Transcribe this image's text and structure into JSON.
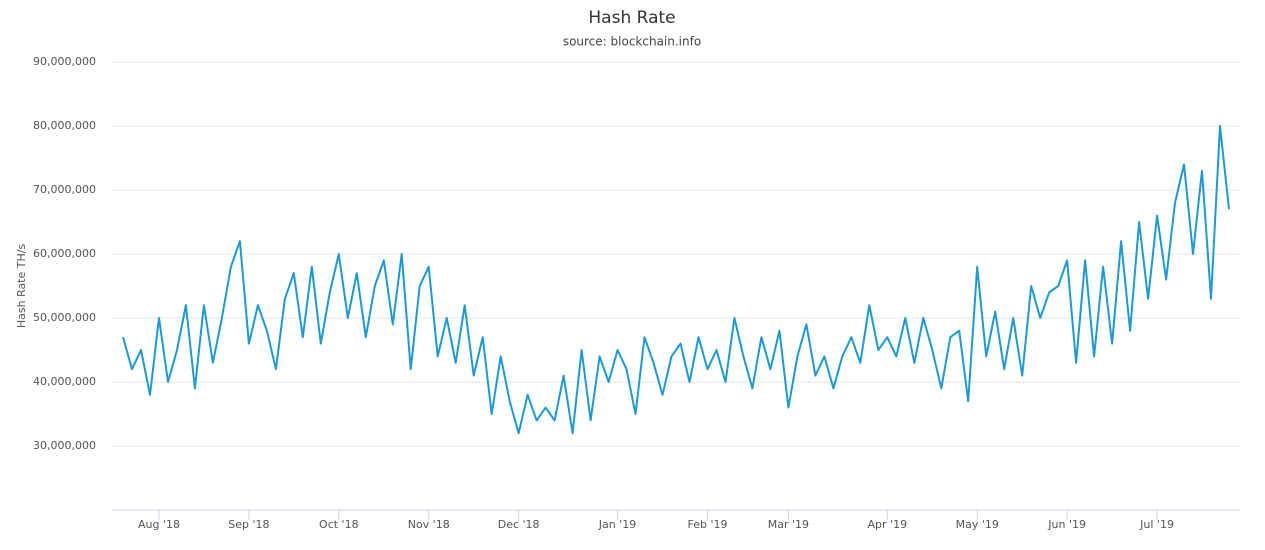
{
  "chart_data": {
    "type": "line",
    "title": "Hash Rate",
    "subtitle": "source: blockchain.info",
    "y_label": "Hash Rate TH/s",
    "categories": [
      null,
      null,
      null,
      null,
      "Aug '18",
      null,
      null,
      null,
      null,
      null,
      null,
      null,
      null,
      null,
      "Sep '18",
      null,
      null,
      null,
      null,
      null,
      null,
      null,
      null,
      null,
      "Oct '18",
      null,
      null,
      null,
      null,
      null,
      null,
      null,
      null,
      null,
      "Nov '18",
      null,
      null,
      null,
      null,
      null,
      null,
      null,
      null,
      null,
      "Dec '18",
      null,
      null,
      null,
      null,
      null,
      null,
      null,
      null,
      null,
      null,
      "Jan '19",
      null,
      null,
      null,
      null,
      null,
      null,
      null,
      null,
      null,
      "Feb '19",
      null,
      null,
      null,
      null,
      null,
      null,
      null,
      null,
      "Mar '19",
      null,
      null,
      null,
      null,
      null,
      null,
      null,
      null,
      null,
      null,
      "Apr '19",
      null,
      null,
      null,
      null,
      null,
      null,
      null,
      null,
      null,
      "May '19",
      null,
      null,
      null,
      null,
      null,
      null,
      null,
      null,
      null,
      "Jun '19",
      null,
      null,
      null,
      null,
      null,
      null,
      null,
      null,
      null,
      "Jul '19",
      null,
      null,
      null,
      null,
      null,
      null,
      null,
      null
    ],
    "series": [
      {
        "name": "Hash Rate",
        "color": "#1a9ad6",
        "values": [
          47000000,
          42000000,
          45000000,
          38000000,
          50000000,
          40000000,
          45000000,
          52000000,
          39000000,
          52000000,
          43000000,
          50000000,
          58000000,
          62000000,
          46000000,
          52000000,
          48000000,
          42000000,
          53000000,
          57000000,
          47000000,
          58000000,
          46000000,
          54000000,
          60000000,
          50000000,
          57000000,
          47000000,
          55000000,
          59000000,
          49000000,
          60000000,
          42000000,
          55000000,
          58000000,
          44000000,
          50000000,
          43000000,
          52000000,
          41000000,
          47000000,
          35000000,
          44000000,
          37000000,
          32000000,
          38000000,
          34000000,
          36000000,
          34000000,
          41000000,
          32000000,
          45000000,
          34000000,
          44000000,
          40000000,
          45000000,
          42000000,
          35000000,
          47000000,
          43000000,
          38000000,
          44000000,
          46000000,
          40000000,
          47000000,
          42000000,
          45000000,
          40000000,
          50000000,
          44000000,
          39000000,
          47000000,
          42000000,
          48000000,
          36000000,
          44000000,
          49000000,
          41000000,
          44000000,
          39000000,
          44000000,
          47000000,
          43000000,
          52000000,
          45000000,
          47000000,
          44000000,
          50000000,
          43000000,
          50000000,
          45000000,
          39000000,
          47000000,
          48000000,
          37000000,
          58000000,
          44000000,
          51000000,
          42000000,
          50000000,
          41000000,
          55000000,
          50000000,
          54000000,
          55000000,
          59000000,
          43000000,
          59000000,
          44000000,
          58000000,
          46000000,
          62000000,
          48000000,
          65000000,
          53000000,
          66000000,
          56000000,
          68000000,
          74000000,
          60000000,
          73000000,
          53000000,
          80000000,
          67000000
        ]
      }
    ],
    "ylim": [
      20000000,
      90000000
    ],
    "yticks": [
      {
        "value": 30000000,
        "label": "30,000,000"
      },
      {
        "value": 40000000,
        "label": "40,000,000"
      },
      {
        "value": 50000000,
        "label": "50,000,000"
      },
      {
        "value": 60000000,
        "label": "60,000,000"
      },
      {
        "value": 70000000,
        "label": "70,000,000"
      },
      {
        "value": 80000000,
        "label": "80,000,000"
      },
      {
        "value": 90000000,
        "label": "90,000,000"
      }
    ],
    "grid": true
  }
}
